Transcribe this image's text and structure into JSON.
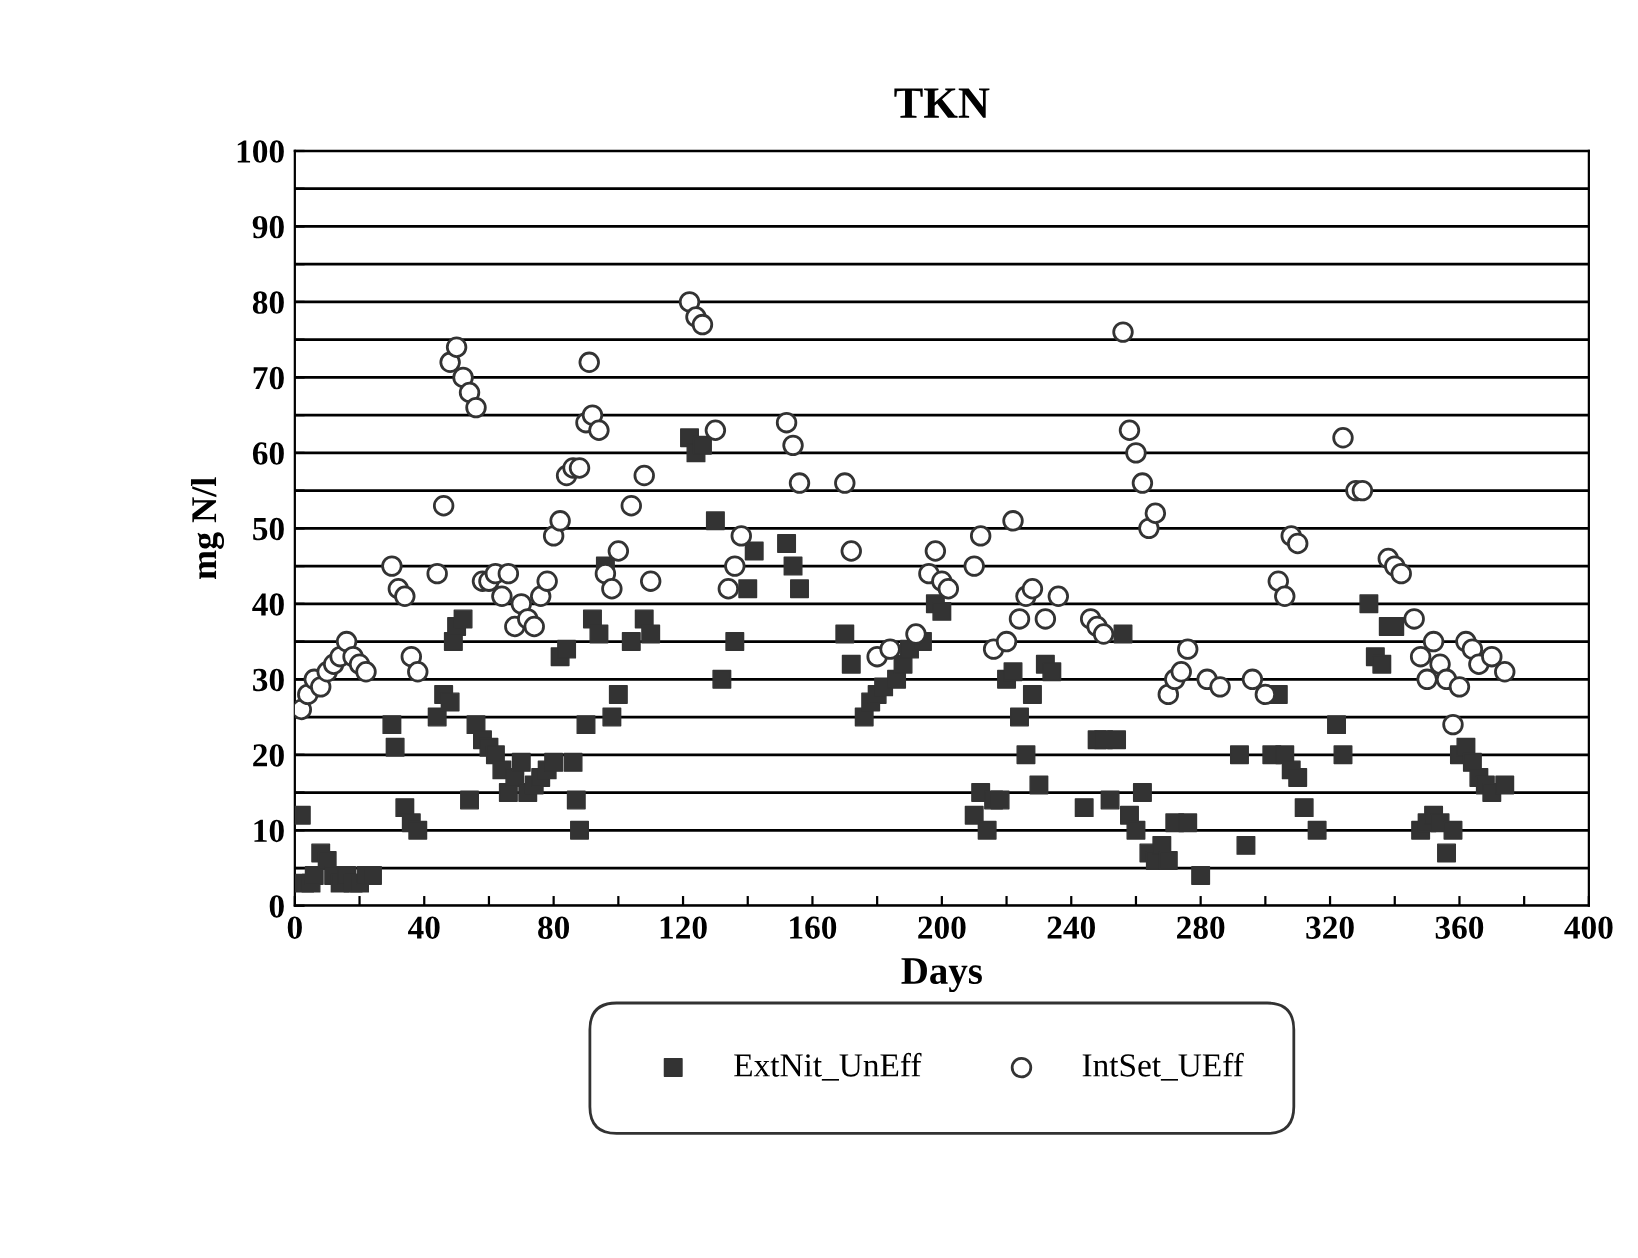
{
  "chart_data": {
    "type": "scatter",
    "title": "TKN",
    "xlabel": "Days",
    "ylabel": "mg N/l",
    "xlim": [
      0,
      400
    ],
    "xticks": [
      0,
      {
        "value": 20,
        "label": null
      },
      40,
      {
        "value": 60,
        "label": null
      },
      80,
      {
        "value": 100,
        "label": null
      },
      120,
      {
        "value": 140,
        "label": null
      },
      160,
      {
        "value": 180,
        "label": null
      },
      200,
      {
        "value": 220,
        "label": null
      },
      240,
      {
        "value": 260,
        "label": null
      },
      280,
      {
        "value": 300,
        "label": null
      },
      320,
      {
        "value": 340,
        "label": null
      },
      360,
      {
        "value": 380,
        "label": null
      },
      400
    ],
    "ylim": [
      0,
      100
    ],
    "yticks": [
      0,
      {
        "value": 5,
        "label": null
      },
      10,
      {
        "value": 15,
        "label": null
      },
      20,
      {
        "value": 25,
        "label": null
      },
      30,
      {
        "value": 35,
        "label": null
      },
      40,
      {
        "value": 45,
        "label": null
      },
      50,
      {
        "value": 55,
        "label": null
      },
      60,
      {
        "value": 65,
        "label": null
      },
      70,
      {
        "value": 75,
        "label": null
      },
      80,
      {
        "value": 85,
        "label": null
      },
      90,
      {
        "value": 95,
        "label": null
      },
      100
    ],
    "grid": "y",
    "legend": "bottom",
    "series": [
      {
        "name": "ExtNit_UnEff",
        "color": "#333333",
        "marker": "square",
        "x": [
          2,
          3,
          5,
          6,
          8,
          10,
          12,
          14,
          16,
          18,
          20,
          22,
          24,
          30,
          31,
          34,
          36,
          38,
          44,
          46,
          48,
          49,
          50,
          52,
          54,
          56,
          58,
          60,
          62,
          64,
          66,
          68,
          70,
          72,
          74,
          76,
          78,
          80,
          82,
          84,
          86,
          87,
          88,
          90,
          92,
          94,
          96,
          98,
          100,
          104,
          108,
          110,
          122,
          124,
          126,
          130,
          132,
          136,
          140,
          142,
          152,
          154,
          156,
          170,
          172,
          176,
          178,
          180,
          182,
          186,
          188,
          190,
          194,
          198,
          200,
          210,
          212,
          214,
          216,
          218,
          220,
          222,
          224,
          226,
          228,
          230,
          232,
          234,
          244,
          248,
          250,
          252,
          254,
          256,
          258,
          260,
          262,
          264,
          266,
          268,
          270,
          272,
          276,
          280,
          292,
          294,
          302,
          304,
          306,
          308,
          310,
          312,
          316,
          322,
          324,
          332,
          334,
          336,
          338,
          340,
          348,
          350,
          352,
          354,
          356,
          358,
          360,
          362,
          364,
          366,
          368,
          370,
          374
        ],
        "values": [
          12,
          3,
          3,
          4,
          7,
          6,
          4,
          3,
          4,
          3,
          3,
          4,
          4,
          24,
          21,
          13,
          11,
          10,
          25,
          28,
          27,
          35,
          37,
          38,
          14,
          24,
          22,
          21,
          20,
          18,
          15,
          17,
          19,
          15,
          16,
          17,
          18,
          19,
          33,
          34,
          19,
          14,
          10,
          24,
          38,
          36,
          45,
          25,
          28,
          35,
          38,
          36,
          62,
          60,
          61,
          51,
          30,
          35,
          42,
          47,
          48,
          45,
          42,
          36,
          32,
          25,
          27,
          28,
          29,
          30,
          32,
          34,
          35,
          40,
          39,
          12,
          15,
          10,
          14,
          14,
          30,
          31,
          25,
          20,
          28,
          16,
          32,
          31,
          13,
          22,
          22,
          14,
          22,
          36,
          12,
          10,
          15,
          7,
          6,
          8,
          6,
          11,
          11,
          4,
          20,
          8,
          20,
          28,
          20,
          18,
          17,
          13,
          10,
          24,
          20,
          40,
          33,
          32,
          37,
          37,
          10,
          11,
          12,
          11,
          7,
          10,
          20,
          21,
          19,
          17,
          16,
          15,
          16
        ]
      },
      {
        "name": "IntSet_UEff",
        "color": "#333333",
        "marker": "circle",
        "x": [
          2,
          4,
          6,
          8,
          10,
          12,
          14,
          16,
          18,
          20,
          22,
          30,
          32,
          34,
          36,
          38,
          44,
          46,
          48,
          50,
          52,
          54,
          56,
          58,
          60,
          62,
          64,
          66,
          68,
          70,
          72,
          74,
          76,
          78,
          80,
          82,
          84,
          86,
          88,
          90,
          91,
          92,
          94,
          96,
          98,
          100,
          104,
          108,
          110,
          122,
          124,
          126,
          130,
          134,
          136,
          138,
          152,
          154,
          156,
          170,
          172,
          180,
          184,
          192,
          196,
          198,
          200,
          202,
          210,
          212,
          216,
          220,
          222,
          224,
          226,
          228,
          232,
          236,
          246,
          248,
          250,
          256,
          258,
          260,
          262,
          264,
          266,
          270,
          272,
          274,
          276,
          282,
          286,
          296,
          300,
          304,
          306,
          308,
          310,
          324,
          328,
          330,
          338,
          340,
          342,
          346,
          348,
          350,
          352,
          354,
          356,
          358,
          360,
          362,
          364,
          366,
          370,
          374
        ],
        "values": [
          26,
          28,
          30,
          29,
          31,
          32,
          33,
          35,
          33,
          32,
          31,
          45,
          42,
          41,
          33,
          31,
          44,
          53,
          72,
          74,
          70,
          68,
          66,
          43,
          43,
          44,
          41,
          44,
          37,
          40,
          38,
          37,
          41,
          43,
          49,
          51,
          57,
          58,
          58,
          64,
          72,
          65,
          63,
          44,
          42,
          47,
          53,
          57,
          43,
          80,
          78,
          77,
          63,
          42,
          45,
          49,
          64,
          61,
          56,
          56,
          47,
          33,
          34,
          36,
          44,
          47,
          43,
          42,
          45,
          49,
          34,
          35,
          51,
          38,
          41,
          42,
          38,
          41,
          38,
          37,
          36,
          76,
          63,
          60,
          56,
          50,
          52,
          28,
          30,
          31,
          34,
          30,
          29,
          30,
          28,
          43,
          41,
          49,
          48,
          62,
          55,
          55,
          46,
          45,
          44,
          38,
          33,
          30,
          35,
          32,
          30,
          24,
          29,
          35,
          34,
          32,
          33,
          31
        ]
      }
    ]
  }
}
